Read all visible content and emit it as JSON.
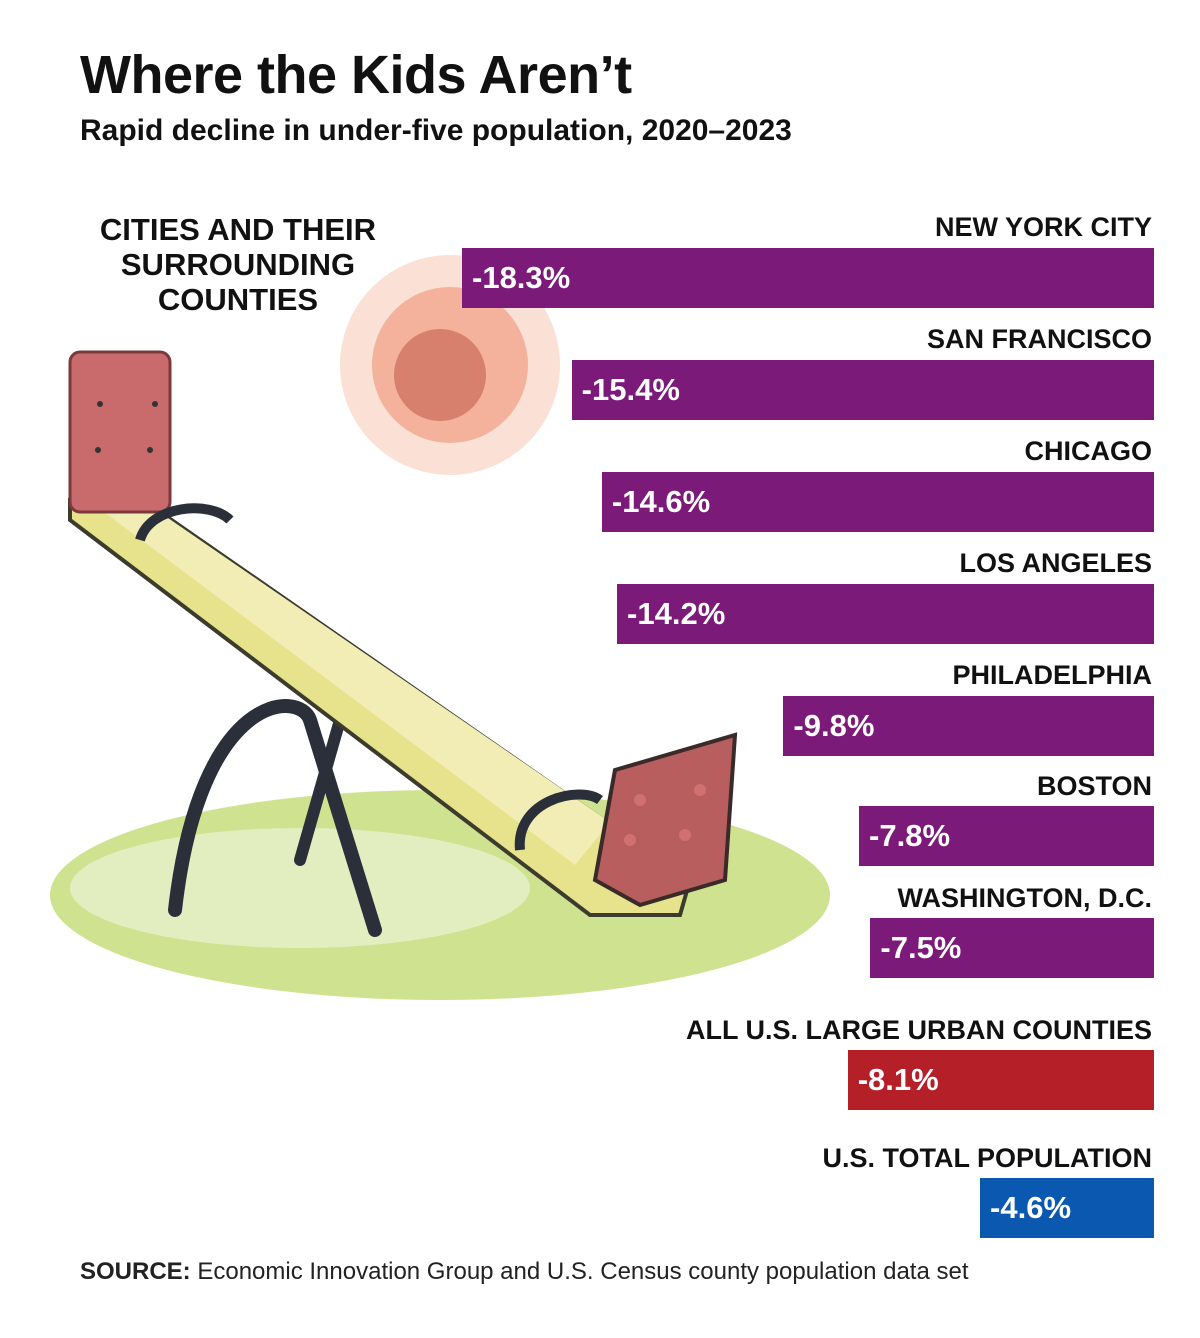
{
  "header": {
    "title": "Where the Kids Aren’t",
    "subtitle": "Rapid decline in under-five population, 2020–2023"
  },
  "group_label": "CITIES AND THEIR SURROUNDING COUNTIES",
  "source": {
    "label": "SOURCE:",
    "text": "Economic Innovation Group and U.S. Census county population data set"
  },
  "colors": {
    "city": "#7b1a78",
    "urban": "#b51f27",
    "total": "#0a58b0",
    "grass": "#d4e59a",
    "sun": "#f6c3b0"
  },
  "chart_data": {
    "type": "bar",
    "orientation": "horizontal",
    "title": "Where the Kids Aren’t",
    "subtitle": "Rapid decline in under-five population, 2020–2023",
    "xlabel": "",
    "ylabel": "",
    "unit": "%",
    "xlim": [
      -20,
      0
    ],
    "categories": [
      "NEW YORK CITY",
      "SAN FRANCISCO",
      "CHICAGO",
      "LOS ANGELES",
      "PHILADELPHIA",
      "BOSTON",
      "WASHINGTON, D.C.",
      "ALL U.S. LARGE URBAN COUNTIES",
      "U.S. TOTAL POPULATION"
    ],
    "values": [
      -18.3,
      -15.4,
      -14.6,
      -14.2,
      -9.8,
      -7.8,
      -7.5,
      -8.1,
      -4.6
    ],
    "labels": [
      "-18.3%",
      "-15.4%",
      "-14.6%",
      "-14.2%",
      "-9.8%",
      "-7.8%",
      "-7.5%",
      "-8.1%",
      "-4.6%"
    ],
    "groups": [
      "city",
      "city",
      "city",
      "city",
      "city",
      "city",
      "city",
      "urban",
      "total"
    ]
  }
}
